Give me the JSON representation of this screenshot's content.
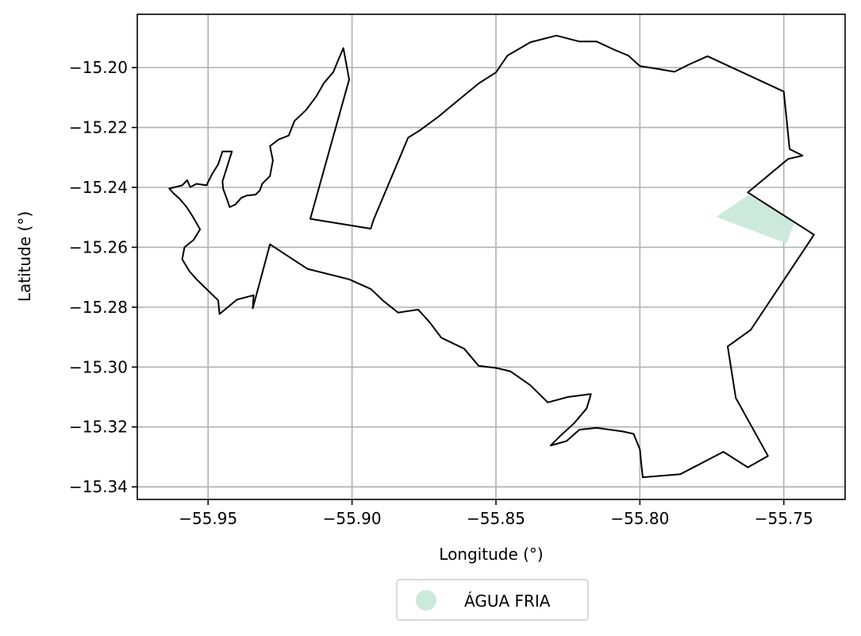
{
  "chart_data": {
    "type": "map",
    "xlabel": "Longitude (°)",
    "ylabel": "Latitude (°)",
    "xlim": [
      -55.9746,
      -55.7287
    ],
    "ylim": [
      -15.3442,
      -15.1822
    ],
    "x_ticks": [
      -55.95,
      -55.9,
      -55.85,
      -55.8,
      -55.75
    ],
    "x_tick_labels": [
      "−55.95",
      "−55.90",
      "−55.85",
      "−55.80",
      "−55.75"
    ],
    "y_ticks": [
      -15.2,
      -15.22,
      -15.24,
      -15.26,
      -15.28,
      -15.3,
      -15.32,
      -15.34
    ],
    "y_tick_labels": [
      "−15.20",
      "−15.22",
      "−15.24",
      "−15.26",
      "−15.28",
      "−15.30",
      "−15.32",
      "−15.34"
    ],
    "grid": true,
    "legend": {
      "placement": "bottom-center, below axes",
      "entries": [
        {
          "label": "ÁGUA FRIA",
          "color": "#cce9dc",
          "marker": "circle"
        }
      ]
    },
    "boundary": {
      "stroke": "#000000",
      "fill": "none",
      "points": [
        [
          -55.9635,
          -15.2404
        ],
        [
          -55.959,
          -15.2393
        ],
        [
          -55.9573,
          -15.2376
        ],
        [
          -55.9562,
          -15.2399
        ],
        [
          -55.954,
          -15.2388
        ],
        [
          -55.9505,
          -15.2393
        ],
        [
          -55.95,
          -15.2382
        ],
        [
          -55.9485,
          -15.2354
        ],
        [
          -55.9465,
          -15.2323
        ],
        [
          -55.945,
          -15.228
        ],
        [
          -55.9417,
          -15.228
        ],
        [
          -55.943,
          -15.2319
        ],
        [
          -55.945,
          -15.238
        ],
        [
          -55.9448,
          -15.2404
        ],
        [
          -55.9435,
          -15.2438
        ],
        [
          -55.9425,
          -15.2466
        ],
        [
          -55.9405,
          -15.2457
        ],
        [
          -55.9385,
          -15.2435
        ],
        [
          -55.9365,
          -15.2427
        ],
        [
          -55.9335,
          -15.2424
        ],
        [
          -55.932,
          -15.241
        ],
        [
          -55.9312,
          -15.2388
        ],
        [
          -55.9285,
          -15.2362
        ],
        [
          -55.9275,
          -15.231
        ],
        [
          -55.9285,
          -15.2262
        ],
        [
          -55.9255,
          -15.224
        ],
        [
          -55.922,
          -15.2227
        ],
        [
          -55.92,
          -15.2178
        ],
        [
          -55.916,
          -15.2142
        ],
        [
          -55.9125,
          -15.2097
        ],
        [
          -55.9098,
          -15.2052
        ],
        [
          -55.9065,
          -15.2015
        ],
        [
          -55.9045,
          -15.1968
        ],
        [
          -55.903,
          -15.1935
        ],
        [
          -55.901,
          -15.204
        ],
        [
          -55.9145,
          -15.2505
        ],
        [
          -55.8935,
          -15.2538
        ],
        [
          -55.8925,
          -15.2508
        ],
        [
          -55.8805,
          -15.2234
        ],
        [
          -55.8765,
          -15.221
        ],
        [
          -55.87,
          -15.2164
        ],
        [
          -55.865,
          -15.2124
        ],
        [
          -55.856,
          -15.2053
        ],
        [
          -55.85,
          -15.2016
        ],
        [
          -55.846,
          -15.196
        ],
        [
          -55.838,
          -15.1915
        ],
        [
          -55.829,
          -15.1893
        ],
        [
          -55.821,
          -15.1913
        ],
        [
          -55.815,
          -15.1913
        ],
        [
          -55.809,
          -15.194
        ],
        [
          -55.804,
          -15.196
        ],
        [
          -55.8,
          -15.1995
        ],
        [
          -55.794,
          -15.2004
        ],
        [
          -55.788,
          -15.2014
        ],
        [
          -55.783,
          -15.199
        ],
        [
          -55.7765,
          -15.1962
        ],
        [
          -55.75,
          -15.208
        ],
        [
          -55.748,
          -15.2272
        ],
        [
          -55.7435,
          -15.2294
        ],
        [
          -55.7485,
          -15.2305
        ],
        [
          -55.7625,
          -15.2417
        ],
        [
          -55.7395,
          -15.2558
        ],
        [
          -55.7615,
          -15.2876
        ],
        [
          -55.7695,
          -15.2931
        ],
        [
          -55.7667,
          -15.3103
        ],
        [
          -55.7555,
          -15.3297
        ],
        [
          -55.7625,
          -15.3335
        ],
        [
          -55.771,
          -15.3283
        ],
        [
          -55.786,
          -15.3358
        ],
        [
          -55.799,
          -15.3368
        ],
        [
          -55.7995,
          -15.3325
        ],
        [
          -55.8,
          -15.3275
        ],
        [
          -55.8022,
          -15.3223
        ],
        [
          -55.806,
          -15.3215
        ],
        [
          -55.815,
          -15.3203
        ],
        [
          -55.821,
          -15.3209
        ],
        [
          -55.8255,
          -15.3247
        ],
        [
          -55.831,
          -15.3262
        ],
        [
          -55.828,
          -15.3233
        ],
        [
          -55.8228,
          -15.3187
        ],
        [
          -55.8185,
          -15.3138
        ],
        [
          -55.817,
          -15.309
        ],
        [
          -55.825,
          -15.31
        ],
        [
          -55.832,
          -15.3118
        ],
        [
          -55.838,
          -15.3061
        ],
        [
          -55.845,
          -15.3014
        ],
        [
          -55.85,
          -15.3003
        ],
        [
          -55.856,
          -15.2996
        ],
        [
          -55.861,
          -15.2939
        ],
        [
          -55.869,
          -15.2902
        ],
        [
          -55.873,
          -15.2851
        ],
        [
          -55.877,
          -15.2808
        ],
        [
          -55.884,
          -15.2818
        ],
        [
          -55.889,
          -15.278
        ],
        [
          -55.8935,
          -15.2739
        ],
        [
          -55.901,
          -15.2707
        ],
        [
          -55.9155,
          -15.2672
        ],
        [
          -55.9285,
          -15.259
        ],
        [
          -55.9345,
          -15.2804
        ],
        [
          -55.9342,
          -15.276
        ],
        [
          -55.94,
          -15.2775
        ],
        [
          -55.946,
          -15.2823
        ],
        [
          -55.9465,
          -15.2777
        ],
        [
          -55.9505,
          -15.274
        ],
        [
          -55.954,
          -15.2707
        ],
        [
          -55.9565,
          -15.268
        ],
        [
          -55.959,
          -15.264
        ],
        [
          -55.9582,
          -15.26
        ],
        [
          -55.955,
          -15.2575
        ],
        [
          -55.9528,
          -15.254
        ],
        [
          -55.9555,
          -15.2495
        ],
        [
          -55.9575,
          -15.2465
        ],
        [
          -55.96,
          -15.2437
        ],
        [
          -55.962,
          -15.242
        ]
      ]
    },
    "region": {
      "name": "ÁGUA FRIA",
      "fill": "#cce9dc",
      "points": [
        [
          -55.7735,
          -15.2498
        ],
        [
          -55.7622,
          -15.2425
        ],
        [
          -55.7462,
          -15.2514
        ],
        [
          -55.749,
          -15.2587
        ]
      ]
    }
  }
}
